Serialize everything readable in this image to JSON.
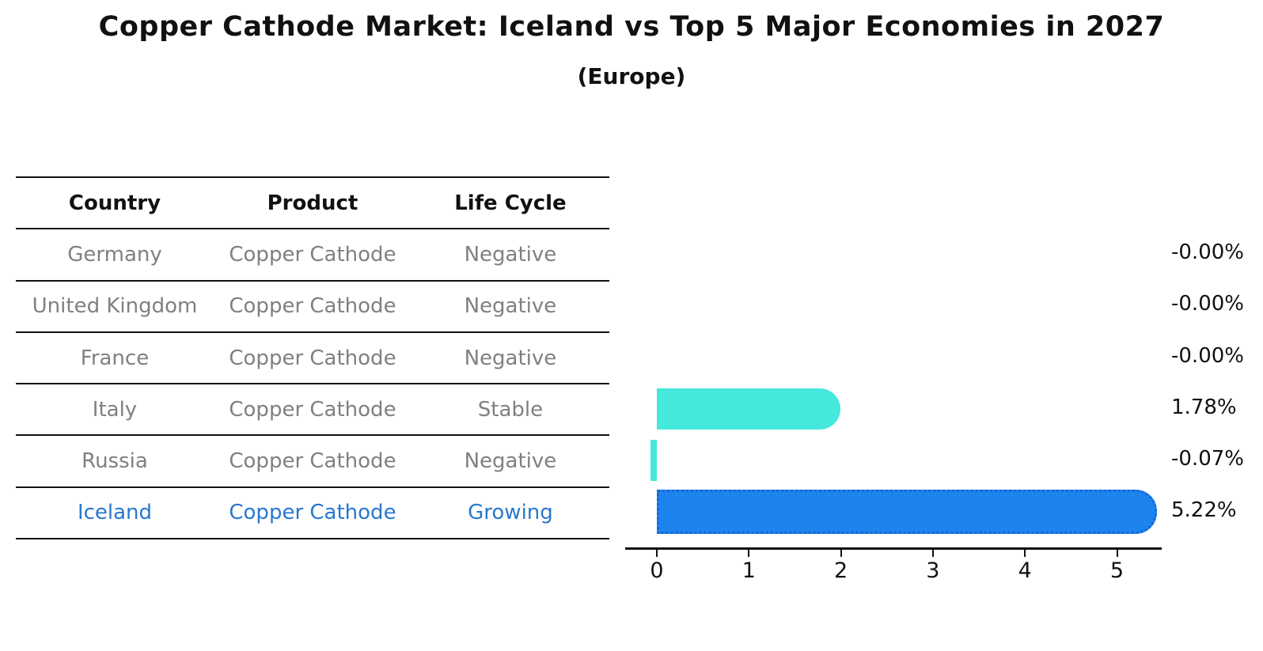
{
  "title": "Copper Cathode Market: Iceland vs Top 5 Major Economies in 2027",
  "subtitle": "(Europe)",
  "table": {
    "headers": [
      "Country",
      "Product",
      "Life Cycle"
    ],
    "rows": [
      {
        "country": "Germany",
        "product": "Copper Cathode",
        "life_cycle": "Negative",
        "highlight": false
      },
      {
        "country": "United Kingdom",
        "product": "Copper Cathode",
        "life_cycle": "Negative",
        "highlight": false
      },
      {
        "country": "France",
        "product": "Copper Cathode",
        "life_cycle": "Negative",
        "highlight": false
      },
      {
        "country": "Italy",
        "product": "Copper Cathode",
        "life_cycle": "Stable",
        "highlight": false
      },
      {
        "country": "Russia",
        "product": "Copper Cathode",
        "life_cycle": "Negative",
        "highlight": false
      },
      {
        "country": "Iceland",
        "product": "Copper Cathode",
        "life_cycle": "Growing",
        "highlight": true
      }
    ]
  },
  "chart_data": {
    "type": "bar",
    "orientation": "horizontal",
    "title": "Copper Cathode Market: Iceland vs Top 5 Major Economies in 2027",
    "subtitle": "(Europe)",
    "categories": [
      "Germany",
      "United Kingdom",
      "France",
      "Italy",
      "Russia",
      "Iceland"
    ],
    "values": [
      -0.0,
      -0.0,
      -0.0,
      1.78,
      -0.07,
      5.22
    ],
    "value_labels": [
      "-0.00%",
      "-0.00%",
      "-0.00%",
      "1.78%",
      "-0.07%",
      "5.22%"
    ],
    "xticks": [
      0,
      1,
      2,
      3,
      4,
      5
    ],
    "xlim": [
      -0.4,
      5.5
    ],
    "grid": false,
    "legend": false,
    "highlight_index": 5,
    "colors": {
      "default_bar": "#45e8dc",
      "highlight_bar": "#1d84ee",
      "highlight_border": "#1a64d8",
      "row_text": "#808080",
      "highlight_text": "#2878cd",
      "axis_text": "#111111"
    }
  }
}
